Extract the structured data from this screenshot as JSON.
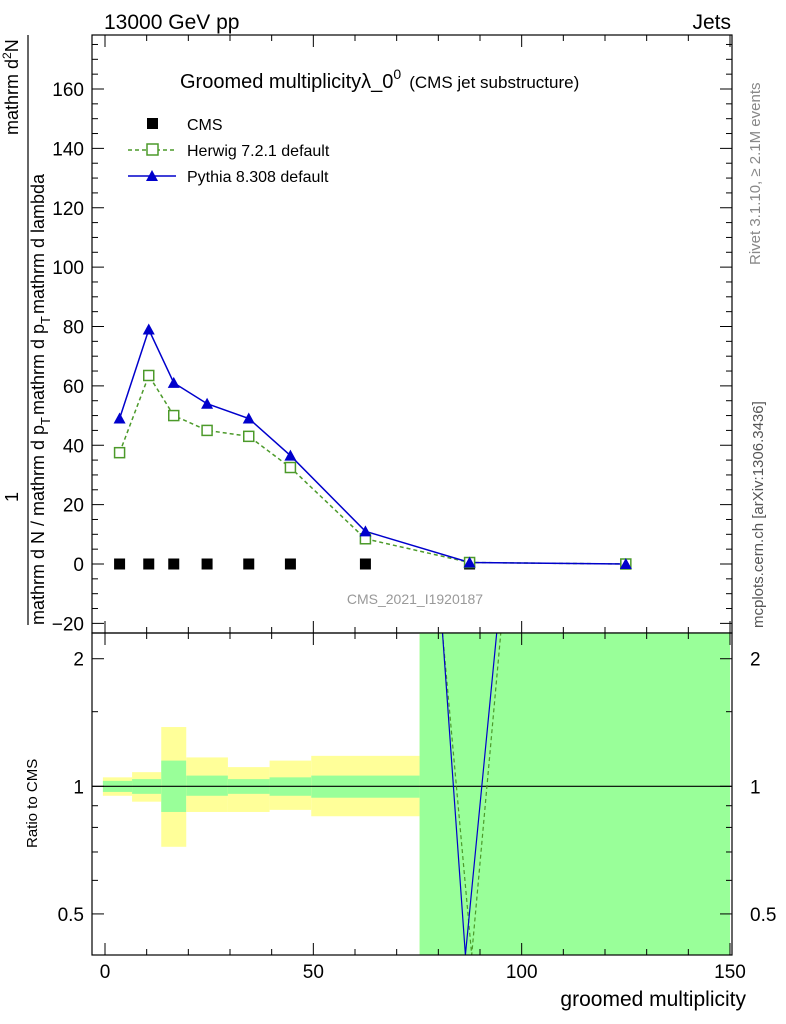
{
  "header": {
    "left": "13000 GeV pp",
    "right": "Jets"
  },
  "side_labels": {
    "rivet": "Rivet 3.1.10, ≥ 2.1M events",
    "mcplots": "mcplots.cern.ch [arXiv:1306.3436]"
  },
  "chart_data": [
    {
      "type": "line",
      "title": "Groomed multiplicityλ_0",
      "title_sup": "0",
      "title_suffix": "(CMS jet substructure)",
      "watermark": "CMS_2021_I1920187",
      "ylabel": {
        "frac_num": "1",
        "frac_den_a": "mathrm d N / mathrm d p",
        "frac_den_b": "mathrm d p",
        "rhs_num": "mathrm d",
        "rhs_den": "mathrm d p",
        "rhs_tail": "mathrm d lambda",
        "sub": "T",
        "sup": "2",
        "N": "N"
      },
      "ylim": [
        -20,
        175
      ],
      "yticks": [
        -20,
        0,
        20,
        40,
        60,
        80,
        100,
        120,
        140,
        160
      ],
      "legend": [
        "CMS",
        "Herwig 7.2.1 default",
        "Pythia 8.308 default"
      ],
      "legend_position": "top-left",
      "series": [
        {
          "name": "CMS",
          "style": "filled-square",
          "color": "#000000",
          "x": [
            3.5,
            10.5,
            16.5,
            24.5,
            34.5,
            44.5,
            62.5,
            87.5,
            125
          ],
          "y": [
            0,
            0,
            0,
            0,
            0,
            0,
            0,
            0,
            0
          ]
        },
        {
          "name": "Herwig 7.2.1 default",
          "style": "open-square-dashed",
          "color": "#4c9a2a",
          "x": [
            3.5,
            10.5,
            16.5,
            24.5,
            34.5,
            44.5,
            62.5,
            87.5,
            125
          ],
          "y": [
            37.5,
            63.5,
            50,
            45,
            43,
            32.5,
            8.5,
            0.5,
            0
          ]
        },
        {
          "name": "Pythia 8.308 default",
          "style": "filled-triangle-solid",
          "color": "#0000cc",
          "x": [
            3.5,
            10.5,
            16.5,
            24.5,
            34.5,
            44.5,
            62.5,
            87.5,
            125
          ],
          "y": [
            49,
            79,
            61,
            54,
            49,
            36.5,
            11,
            0.5,
            0
          ]
        }
      ]
    },
    {
      "type": "area",
      "ylabel": "Ratio to CMS",
      "xlabel": "groomed multiplicity",
      "xlim": [
        -3,
        150
      ],
      "xticks": [
        0,
        50,
        100,
        150
      ],
      "ylog": true,
      "ylim": [
        0.4,
        2.3
      ],
      "yticks": [
        0.5,
        1,
        2
      ],
      "band_colors": {
        "stat": "#99ff99",
        "total": "#ffff99"
      },
      "bins": [
        {
          "x0": -0.5,
          "x1": 6.5,
          "stat": [
            0.97,
            1.03
          ],
          "total": [
            0.95,
            1.05
          ]
        },
        {
          "x0": 6.5,
          "x1": 13.5,
          "stat": [
            0.96,
            1.04
          ],
          "total": [
            0.92,
            1.08
          ]
        },
        {
          "x0": 13.5,
          "x1": 19.5,
          "stat": [
            0.87,
            1.15
          ],
          "total": [
            0.72,
            1.38
          ]
        },
        {
          "x0": 19.5,
          "x1": 29.5,
          "stat": [
            0.95,
            1.06
          ],
          "total": [
            0.87,
            1.17
          ]
        },
        {
          "x0": 29.5,
          "x1": 39.5,
          "stat": [
            0.96,
            1.04
          ],
          "total": [
            0.87,
            1.11
          ]
        },
        {
          "x0": 39.5,
          "x1": 49.5,
          "stat": [
            0.95,
            1.05
          ],
          "total": [
            0.88,
            1.15
          ]
        },
        {
          "x0": 49.5,
          "x1": 75.5,
          "stat": [
            0.94,
            1.06
          ],
          "total": [
            0.85,
            1.18
          ]
        },
        {
          "x0": 75.5,
          "x1": 150,
          "stat": [
            0.1,
            10
          ],
          "total": [
            0.1,
            10
          ]
        }
      ],
      "series": [
        {
          "name": "Herwig 7.2.1 default",
          "color": "#4c9a2a",
          "x": [
            81,
            88,
            95
          ],
          "y": [
            2.5,
            0.38,
            2.5
          ]
        },
        {
          "name": "Pythia 8.308 default",
          "color": "#0000cc",
          "x": [
            81,
            86.5,
            94
          ],
          "y": [
            2.5,
            0.38,
            2.5
          ]
        }
      ]
    }
  ]
}
